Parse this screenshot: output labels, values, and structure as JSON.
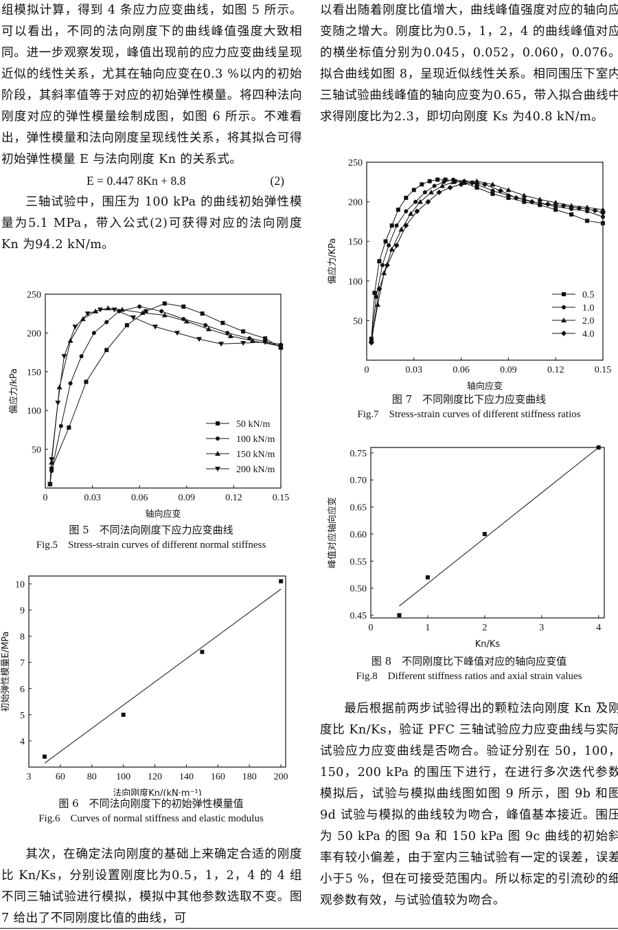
{
  "left_col": {
    "p1": "组模拟计算，得到 4 条应力应变曲线，如图 5 所示。可以看出，不同的法向刚度下的曲线峰值强度大致相同。进一步观察发现，峰值出现前的应力应变曲线呈现近似的线性关系，尤其在轴向应变在0.3 %以内的初始阶段，其斜率值等于对应的初始弹性模量。将四种法向刚度对应的弹性模量绘制成图，如图 6 所示。不难看出，弹性模量和法向刚度呈现线性关系，将其拟合可得初始弹性模量 E 与法向刚度 Kn 的关系式。",
    "equation": "E = 0.447 8Kn + 8.8",
    "equation_number": "(2)",
    "p2": "三轴试验中，围压为 100 kPa 的曲线初始弹性模量为5.1 MPa，带入公式(2)可获得对应的法向刚度 Kn 为94.2 kN/m。",
    "p3": "其次，在确定法向刚度的基础上来确定合适的刚度比 Kn/Ks，分别设置刚度比为0.5，1，2，4 的 4 组不同三轴试验进行模拟，模拟中其他参数选取不变。图 7 给出了不同刚度比值的曲线，可"
  },
  "right_col": {
    "p1": "以看出随着刚度比值增大，曲线峰值强度对应的轴向应变随之增大。刚度比为0.5，1，2，4 的曲线峰值对应的横坐标值分别为0.045，0.052，0.060，0.076。拟合曲线如图 8，呈现近似线性关系。相同围压下室内三轴试验曲线峰值的轴向应变为0.65，带入拟合曲线中求得刚度比为2.3，即切向刚度 Ks 为40.8 kN/m。",
    "p2": "最后根据前两步试验得出的颗粒法向刚度 Kn 及刚度比 Kn/Ks，验证 PFC 三轴试验应力应变曲线与实际试验应力应变曲线是否吻合。验证分别在 50，100，150，200 kPa 的围压下进行，在进行多次迭代参数模拟后，试验与模拟曲线图如图 9 所示，图 9b 和图 9d 试验与模拟的曲线较为吻合，峰值基本接近。围压为 50 kPa 的图 9a 和 150 kPa 图 9c 曲线的初始斜率有较小偏差，由于室内三轴试验有一定的误差，误差小于5 %，但在可接受范围内。所以标定的引流砂的细观参数有效，与试验值较为吻合。"
  },
  "fig5": {
    "caption_cn": "图 5　不同法向刚度下应力应变曲线",
    "caption_en": "Fig.5　Stress-strain curves of different normal stiffness"
  },
  "fig6": {
    "caption_cn": "图 6　不同法向刚度下的初始弹性模量值",
    "caption_en": "Fig.6　Curves of normal stiffness and elastic modulus"
  },
  "fig7": {
    "caption_cn": "图 7　不同刚度比下应力应变曲线",
    "caption_en": "Fig.7　Stress-strain curves of different stiffness ratios"
  },
  "fig8": {
    "caption_cn": "图 8　不同刚度比下峰值对应的轴向应变值",
    "caption_en": "Fig.8　Different stiffness ratios and axial strain values"
  },
  "chart_data": [
    {
      "id": "fig5",
      "type": "line",
      "xlabel": "轴向应变",
      "ylabel": "偏应力/kPa",
      "xlim": [
        0,
        0.15
      ],
      "ylim": [
        0,
        250
      ],
      "xticks": [
        "0",
        "0.03",
        "0.06",
        "0.09",
        "0.12",
        "0.15"
      ],
      "yticks": [
        "50",
        "100",
        "150",
        "200",
        "250"
      ],
      "legend_position": "bottom-right",
      "series": [
        {
          "name": "50 kN/m",
          "marker": "square",
          "x": [
            0.003,
            0.004,
            0.015,
            0.026,
            0.039,
            0.052,
            0.064,
            0.076,
            0.088,
            0.1,
            0.113,
            0.126,
            0.14,
            0.15
          ],
          "y": [
            5,
            25,
            78,
            137,
            178,
            210,
            228,
            238,
            234,
            225,
            213,
            202,
            193,
            181
          ]
        },
        {
          "name": "100 kN/m",
          "marker": "circle",
          "x": [
            0.003,
            0.004,
            0.01,
            0.016,
            0.023,
            0.031,
            0.039,
            0.047,
            0.06,
            0.074,
            0.088,
            0.102,
            0.116,
            0.13,
            0.15
          ],
          "y": [
            5,
            22,
            80,
            135,
            170,
            200,
            214,
            228,
            234,
            228,
            218,
            210,
            200,
            193,
            185
          ]
        },
        {
          "name": "150 kN/m",
          "marker": "triangle",
          "x": [
            0.003,
            0.004,
            0.009,
            0.016,
            0.024,
            0.032,
            0.04,
            0.049,
            0.062,
            0.076,
            0.09,
            0.104,
            0.118,
            0.132,
            0.15
          ],
          "y": [
            5,
            33,
            130,
            190,
            218,
            228,
            232,
            230,
            226,
            223,
            215,
            205,
            196,
            190,
            183
          ]
        },
        {
          "name": "200 kN/m",
          "marker": "triangle-down",
          "x": [
            0.003,
            0.004,
            0.008,
            0.012,
            0.019,
            0.027,
            0.035,
            0.044,
            0.056,
            0.07,
            0.084,
            0.098,
            0.112,
            0.126,
            0.14,
            0.15
          ],
          "y": [
            5,
            37,
            110,
            170,
            208,
            225,
            230,
            230,
            220,
            208,
            200,
            192,
            186,
            187,
            188,
            183
          ]
        }
      ]
    },
    {
      "id": "fig6",
      "type": "scatter",
      "xlabel": "法向刚度Kn/(kN·m⁻¹)",
      "ylabel": "初始弹性模量E/MPa",
      "xlim": [
        40,
        203
      ],
      "ylim": [
        3,
        10.3
      ],
      "xticks": [
        "3",
        "60",
        "80",
        "100",
        "120",
        "140",
        "160",
        "180",
        "200"
      ],
      "yticks": [
        "4",
        "5",
        "6",
        "7",
        "8",
        "9",
        "10"
      ],
      "points": [
        {
          "x": 50,
          "y": 3.4
        },
        {
          "x": 100,
          "y": 5.0
        },
        {
          "x": 150,
          "y": 7.4
        },
        {
          "x": 200,
          "y": 10.1
        }
      ],
      "fit_line": {
        "x": [
          50,
          200
        ],
        "y": [
          3.15,
          9.8
        ]
      }
    },
    {
      "id": "fig7",
      "type": "line",
      "xlabel": "轴向应变",
      "ylabel": "偏应力/KPa",
      "xlim": [
        0,
        0.15
      ],
      "ylim": [
        0,
        250
      ],
      "xticks": [
        "0",
        "0.03",
        "0.06",
        "0.09",
        "0.12",
        "0.15"
      ],
      "yticks": [
        "50",
        "100",
        "150",
        "200",
        "250"
      ],
      "legend_position": "bottom-right",
      "series": [
        {
          "name": "0.5",
          "marker": "square",
          "x": [
            0.003,
            0.005,
            0.008,
            0.012,
            0.016,
            0.02,
            0.025,
            0.03,
            0.035,
            0.04,
            0.045,
            0.05,
            0.056,
            0.062,
            0.07,
            0.08,
            0.09,
            0.1,
            0.11,
            0.12,
            0.13,
            0.14,
            0.15
          ],
          "y": [
            27,
            85,
            125,
            150,
            170,
            190,
            205,
            215,
            222,
            226,
            228,
            228,
            226,
            224,
            218,
            210,
            205,
            200,
            196,
            190,
            184,
            176,
            173
          ]
        },
        {
          "name": "1.0",
          "marker": "circle",
          "x": [
            0.003,
            0.006,
            0.01,
            0.014,
            0.019,
            0.025,
            0.031,
            0.037,
            0.043,
            0.049,
            0.055,
            0.062,
            0.07,
            0.08,
            0.09,
            0.1,
            0.11,
            0.12,
            0.13,
            0.14,
            0.15
          ],
          "y": [
            25,
            80,
            120,
            145,
            170,
            188,
            200,
            212,
            220,
            225,
            228,
            226,
            222,
            214,
            208,
            203,
            198,
            194,
            191,
            188,
            181
          ]
        },
        {
          "name": "2.0",
          "marker": "triangle",
          "x": [
            0.003,
            0.007,
            0.011,
            0.016,
            0.022,
            0.028,
            0.034,
            0.041,
            0.048,
            0.055,
            0.062,
            0.07,
            0.08,
            0.09,
            0.1,
            0.11,
            0.12,
            0.13,
            0.14,
            0.15
          ],
          "y": [
            25,
            70,
            110,
            140,
            165,
            185,
            200,
            212,
            220,
            225,
            226,
            226,
            222,
            215,
            208,
            203,
            199,
            195,
            193,
            190
          ]
        },
        {
          "name": "4.0",
          "marker": "diamond",
          "x": [
            0.003,
            0.008,
            0.013,
            0.019,
            0.025,
            0.032,
            0.039,
            0.046,
            0.053,
            0.06,
            0.067,
            0.075,
            0.085,
            0.095,
            0.105,
            0.115,
            0.125,
            0.135,
            0.145,
            0.15
          ],
          "y": [
            22,
            90,
            120,
            145,
            170,
            188,
            200,
            212,
            218,
            222,
            224,
            222,
            214,
            205,
            200,
            197,
            195,
            192,
            189,
            186
          ]
        }
      ]
    },
    {
      "id": "fig8",
      "type": "scatter",
      "xlabel": "Kn/Ks",
      "ylabel": "峰值对应轴向应变",
      "xlim": [
        0,
        4.1
      ],
      "ylim": [
        0.445,
        0.76
      ],
      "xticks": [
        "0",
        "1",
        "2",
        "3",
        "4"
      ],
      "yticks": [
        "0.45",
        "0.50",
        "0.55",
        "0.60",
        "0.65",
        "0.70",
        "0.75"
      ],
      "points": [
        {
          "x": 0.5,
          "y": 0.45
        },
        {
          "x": 1,
          "y": 0.52
        },
        {
          "x": 2,
          "y": 0.6
        },
        {
          "x": 4,
          "y": 0.76
        }
      ],
      "fit_line": {
        "x": [
          0.5,
          4
        ],
        "y": [
          0.467,
          0.76
        ]
      }
    }
  ]
}
